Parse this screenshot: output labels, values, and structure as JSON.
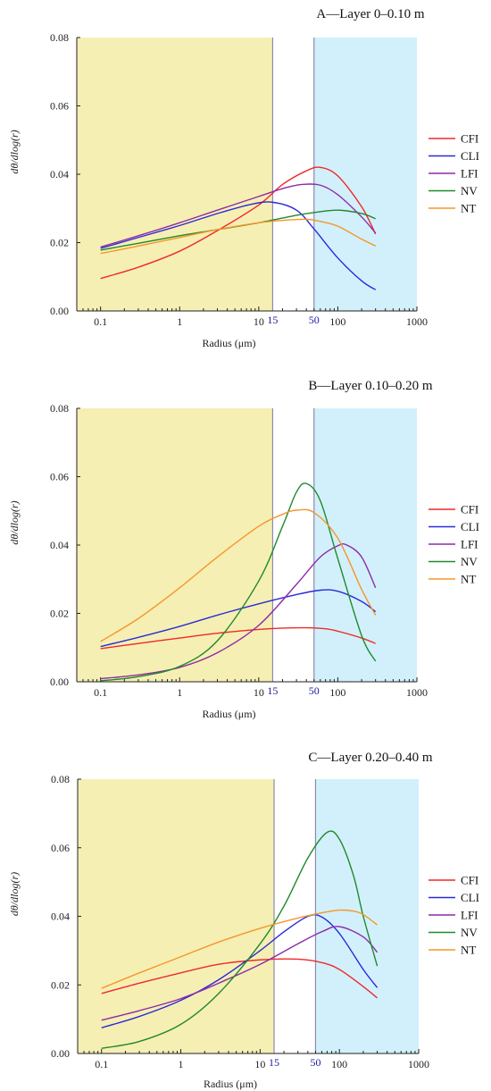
{
  "chart_data": [
    {
      "type": "line",
      "title": "A—Layer 0–0.10 m",
      "xlabel": "Radius (μm)",
      "ylabel": "dθ/dlog(r)",
      "xscale": "log",
      "xlim": [
        0.05,
        1000
      ],
      "ylim": [
        0,
        0.08
      ],
      "xticks": [
        0.1,
        1,
        10,
        100,
        1000
      ],
      "xtick_labels": [
        "0.1",
        "1",
        "10",
        "100",
        "1000"
      ],
      "yticks": [
        "0.00",
        "0.02",
        "0.04",
        "0.06",
        "0.08"
      ],
      "yticks_values": [
        0,
        0.02,
        0.04,
        0.06,
        0.08
      ],
      "boundary_marks": [
        {
          "x": 15,
          "label": "15"
        },
        {
          "x": 50,
          "label": "50"
        }
      ],
      "regions": [
        {
          "from": 0.05,
          "to": 15,
          "color": "#f6efb3"
        },
        {
          "from": 50,
          "to": 1000,
          "color": "#d2f0fb"
        }
      ],
      "legend_position": "right",
      "series": [
        {
          "name": "CFI",
          "color": "#ee2a2a",
          "x": [
            0.1,
            0.3,
            1,
            3,
            10,
            20,
            40,
            60,
            100,
            200,
            300
          ],
          "y": [
            0.0095,
            0.0128,
            0.0175,
            0.0235,
            0.031,
            0.037,
            0.041,
            0.042,
            0.0395,
            0.0305,
            0.0225
          ]
        },
        {
          "name": "CLI",
          "color": "#2a2ad8",
          "x": [
            0.1,
            0.3,
            1,
            3,
            8,
            15,
            30,
            50,
            100,
            200,
            300
          ],
          "y": [
            0.0183,
            0.0215,
            0.025,
            0.0285,
            0.0312,
            0.0318,
            0.0295,
            0.024,
            0.0155,
            0.0088,
            0.0062
          ]
        },
        {
          "name": "LFI",
          "color": "#8e2aa8",
          "x": [
            0.1,
            0.3,
            1,
            3,
            10,
            20,
            35,
            60,
            100,
            200,
            300
          ],
          "y": [
            0.0187,
            0.022,
            0.0258,
            0.0295,
            0.0335,
            0.0358,
            0.037,
            0.0368,
            0.034,
            0.0275,
            0.0228
          ]
        },
        {
          "name": "NV",
          "color": "#1f8a2a",
          "x": [
            0.1,
            0.3,
            1,
            3,
            10,
            30,
            50,
            100,
            200,
            300
          ],
          "y": [
            0.0178,
            0.0198,
            0.022,
            0.0238,
            0.0258,
            0.028,
            0.0288,
            0.0295,
            0.0285,
            0.027
          ]
        },
        {
          "name": "NT",
          "color": "#f5962a",
          "x": [
            0.1,
            0.3,
            1,
            3,
            10,
            20,
            40,
            60,
            100,
            200,
            300
          ],
          "y": [
            0.0168,
            0.019,
            0.0215,
            0.0238,
            0.0258,
            0.0265,
            0.0268,
            0.0262,
            0.0248,
            0.021,
            0.019
          ]
        }
      ]
    },
    {
      "type": "line",
      "title": "B—Layer 0.10–0.20 m",
      "xlabel": "Radius (μm)",
      "ylabel": "dθ/dlog(r)",
      "xscale": "log",
      "xlim": [
        0.05,
        1000
      ],
      "ylim": [
        0,
        0.08
      ],
      "xticks": [
        0.1,
        1,
        10,
        100,
        1000
      ],
      "xtick_labels": [
        "0.1",
        "1",
        "10",
        "100",
        "1000"
      ],
      "yticks": [
        "0.00",
        "0.02",
        "0.04",
        "0.06",
        "0.08"
      ],
      "yticks_values": [
        0,
        0.02,
        0.04,
        0.06,
        0.08
      ],
      "boundary_marks": [
        {
          "x": 15,
          "label": "15"
        },
        {
          "x": 50,
          "label": "50"
        }
      ],
      "regions": [
        {
          "from": 0.05,
          "to": 15,
          "color": "#f6efb3"
        },
        {
          "from": 50,
          "to": 1000,
          "color": "#d2f0fb"
        }
      ],
      "legend_position": "right",
      "series": [
        {
          "name": "CFI",
          "color": "#ee2a2a",
          "x": [
            0.1,
            0.3,
            1,
            3,
            10,
            20,
            40,
            70,
            100,
            200,
            300
          ],
          "y": [
            0.0097,
            0.0112,
            0.0128,
            0.0142,
            0.0153,
            0.0157,
            0.0158,
            0.0155,
            0.0148,
            0.0128,
            0.0112
          ]
        },
        {
          "name": "CLI",
          "color": "#2a2ad8",
          "x": [
            0.1,
            0.3,
            1,
            3,
            10,
            30,
            60,
            100,
            200,
            300
          ],
          "y": [
            0.0103,
            0.013,
            0.0162,
            0.0195,
            0.0228,
            0.0255,
            0.0268,
            0.0265,
            0.0235,
            0.0205
          ]
        },
        {
          "name": "LFI",
          "color": "#8e2aa8",
          "x": [
            0.1,
            0.3,
            1,
            3,
            10,
            30,
            60,
            100,
            130,
            200,
            300
          ],
          "y": [
            0.0009,
            0.002,
            0.0042,
            0.0085,
            0.0165,
            0.0285,
            0.0365,
            0.0398,
            0.04,
            0.0365,
            0.0275
          ]
        },
        {
          "name": "NV",
          "color": "#1f8a2a",
          "x": [
            0.1,
            0.3,
            1,
            3,
            10,
            20,
            30,
            40,
            60,
            100,
            200,
            300
          ],
          "y": [
            0.0003,
            0.0015,
            0.0045,
            0.012,
            0.0295,
            0.0455,
            0.0555,
            0.058,
            0.053,
            0.036,
            0.0135,
            0.006
          ]
        },
        {
          "name": "NT",
          "color": "#f5962a",
          "x": [
            0.1,
            0.3,
            1,
            3,
            10,
            20,
            30,
            50,
            100,
            200,
            300
          ],
          "y": [
            0.0118,
            0.0185,
            0.0275,
            0.0365,
            0.0455,
            0.049,
            0.0502,
            0.0495,
            0.042,
            0.027,
            0.0195
          ]
        }
      ]
    },
    {
      "type": "line",
      "title": "C—Layer 0.20–0.40 m",
      "xlabel": "Radius (μm)",
      "ylabel": "dθ/dlog(r)",
      "xscale": "log",
      "xlim": [
        0.05,
        1000
      ],
      "ylim": [
        0,
        0.08
      ],
      "xticks": [
        0.1,
        1,
        10,
        100,
        1000
      ],
      "xtick_labels": [
        "0.1",
        "1",
        "10",
        "100",
        "1000"
      ],
      "yticks": [
        "0.00",
        "0.02",
        "0.04",
        "0.06",
        "0.08"
      ],
      "yticks_values": [
        0,
        0.02,
        0.04,
        0.06,
        0.08
      ],
      "boundary_marks": [
        {
          "x": 15,
          "label": "15"
        },
        {
          "x": 50,
          "label": "50"
        }
      ],
      "regions": [
        {
          "from": 0.05,
          "to": 15,
          "color": "#f6efb3"
        },
        {
          "from": 50,
          "to": 1000,
          "color": "#d2f0fb"
        }
      ],
      "legend_position": "right",
      "series": [
        {
          "name": "CFI",
          "color": "#ee2a2a",
          "x": [
            0.1,
            0.3,
            1,
            3,
            10,
            30,
            60,
            100,
            200,
            300
          ],
          "y": [
            0.0175,
            0.0205,
            0.0235,
            0.026,
            0.0273,
            0.0275,
            0.0265,
            0.0245,
            0.0195,
            0.0162
          ]
        },
        {
          "name": "CLI",
          "color": "#2a2ad8",
          "x": [
            0.1,
            0.3,
            1,
            3,
            10,
            20,
            40,
            60,
            100,
            200,
            300
          ],
          "y": [
            0.0075,
            0.0108,
            0.0155,
            0.0215,
            0.03,
            0.0355,
            0.04,
            0.0398,
            0.035,
            0.0245,
            0.0192
          ]
        },
        {
          "name": "LFI",
          "color": "#8e2aa8",
          "x": [
            0.1,
            0.3,
            1,
            3,
            10,
            30,
            60,
            100,
            200,
            300
          ],
          "y": [
            0.0097,
            0.0125,
            0.016,
            0.0205,
            0.026,
            0.032,
            0.0355,
            0.037,
            0.034,
            0.0295
          ]
        },
        {
          "name": "NV",
          "color": "#1f8a2a",
          "x": [
            0.1,
            0.3,
            1,
            3,
            10,
            20,
            40,
            70,
            100,
            150,
            200,
            300
          ],
          "y": [
            0.0015,
            0.0035,
            0.0085,
            0.0175,
            0.032,
            0.043,
            0.057,
            0.0645,
            0.0625,
            0.052,
            0.04,
            0.0255
          ]
        },
        {
          "name": "NT",
          "color": "#f5962a",
          "x": [
            0.1,
            0.3,
            1,
            3,
            10,
            30,
            60,
            100,
            150,
            200,
            300
          ],
          "y": [
            0.019,
            0.0235,
            0.0282,
            0.0325,
            0.0365,
            0.0395,
            0.041,
            0.0418,
            0.0415,
            0.0405,
            0.0375
          ]
        }
      ]
    }
  ]
}
